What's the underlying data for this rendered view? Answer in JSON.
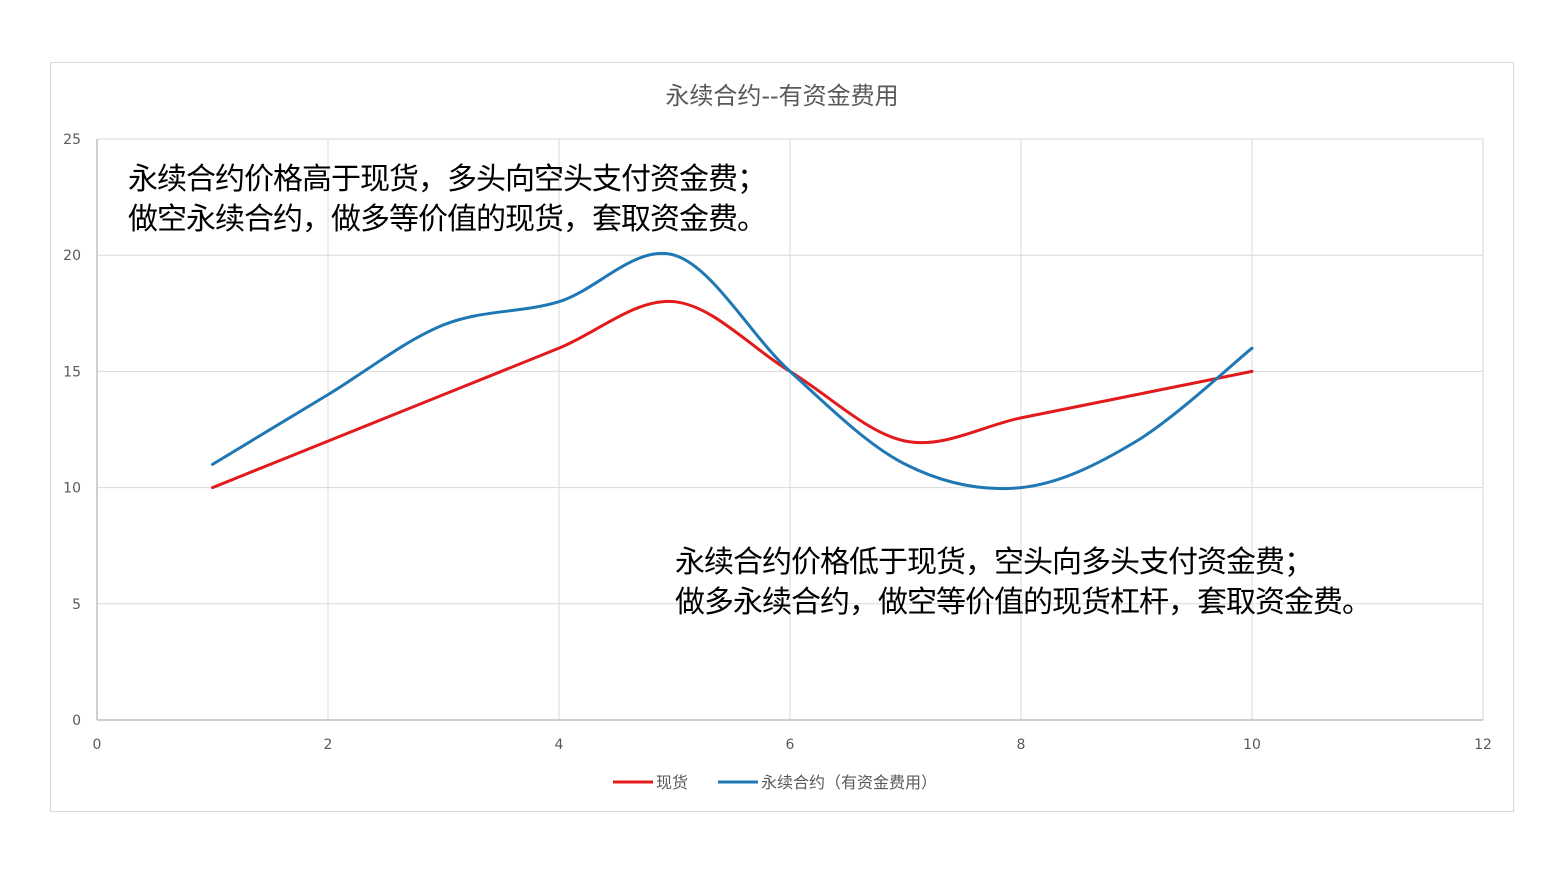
{
  "chart_data": {
    "type": "line",
    "title": "永续合约--有资金费用",
    "xlim": [
      0,
      12
    ],
    "ylim": [
      0,
      25
    ],
    "x_ticks": [
      "0",
      "2",
      "4",
      "6",
      "8",
      "10",
      "12"
    ],
    "y_ticks": [
      "0",
      "5",
      "10",
      "15",
      "20",
      "25"
    ],
    "grid": true,
    "smooth": true,
    "legend_position": "bottom",
    "series": [
      {
        "name": "现货",
        "color": "#e31a1c",
        "x": [
          1,
          2,
          3,
          4,
          5,
          6,
          7,
          8,
          9,
          10
        ],
        "y": [
          10,
          12,
          14,
          16,
          18,
          15,
          12,
          13,
          14,
          15
        ]
      },
      {
        "name": "永续合约（有资金费用）",
        "color": "#1f77b4",
        "x": [
          1,
          2,
          3,
          4,
          5,
          6,
          7,
          8,
          9,
          10
        ],
        "y": [
          11,
          14,
          17,
          18,
          20,
          15,
          11,
          10,
          12,
          16
        ]
      }
    ],
    "annotations": [
      {
        "lines": [
          "永续合约价格高于现货，多头向空头支付资金费；",
          "做空永续合约，做多等价值的现货，套取资金费。"
        ]
      },
      {
        "lines": [
          "永续合约价格低于现货，空头向多头支付资金费；",
          "做多永续合约，做空等价值的现货杠杆，套取资金费。"
        ]
      }
    ]
  },
  "colors": {
    "grid": "#d9d9d9",
    "axis": "#bfbfbf",
    "text": "#595959"
  }
}
